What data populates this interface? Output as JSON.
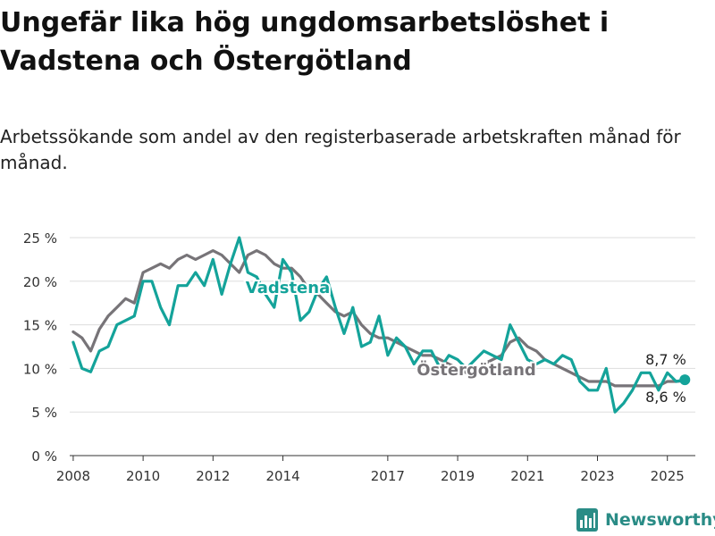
{
  "header": {
    "title": "Ungefär lika hög ungdomsarbetslöshet i Vadstena och Östergötland",
    "subtitle": "Arbetssökande som andel av den registerbaserade arbetskraften månad för månad."
  },
  "brand": {
    "name": "Newsworthy",
    "icon": "bar-chart-icon",
    "color": "#2a8c86"
  },
  "colors": {
    "vadstena": "#14a39a",
    "ostergotland": "#777478",
    "grid": "#dddddd",
    "axis": "#333333"
  },
  "chart_data": {
    "type": "line",
    "title": "Ungefär lika hög ungdomsarbetslöshet i Vadstena och Östergötland",
    "xlabel": "",
    "ylabel": "",
    "ylim": [
      0,
      25
    ],
    "xlim": [
      2007.9,
      2025.8
    ],
    "x_ticks": [
      2008,
      2010,
      2012,
      2014,
      2017,
      2019,
      2021,
      2023,
      2025
    ],
    "y_ticks": [
      0,
      5,
      10,
      15,
      20,
      25
    ],
    "y_tick_labels": [
      "0 %",
      "5 %",
      "10 %",
      "15 %",
      "20 %",
      "25 %"
    ],
    "grid": true,
    "legend": "direct labels on lines",
    "end_labels": [
      "8,7 %",
      "8,6 %"
    ],
    "series": [
      {
        "name": "Vadstena",
        "color": "#14a39a",
        "x": [
          2008.0,
          2008.25,
          2008.5,
          2008.75,
          2009.0,
          2009.25,
          2009.5,
          2009.75,
          2010.0,
          2010.25,
          2010.5,
          2010.75,
          2011.0,
          2011.25,
          2011.5,
          2011.75,
          2012.0,
          2012.25,
          2012.5,
          2012.75,
          2013.0,
          2013.25,
          2013.5,
          2013.75,
          2014.0,
          2014.25,
          2014.5,
          2014.75,
          2015.0,
          2015.25,
          2015.5,
          2015.75,
          2016.0,
          2016.25,
          2016.5,
          2016.75,
          2017.0,
          2017.25,
          2017.5,
          2017.75,
          2018.0,
          2018.25,
          2018.5,
          2018.75,
          2019.0,
          2019.25,
          2019.5,
          2019.75,
          2020.0,
          2020.25,
          2020.5,
          2020.75,
          2021.0,
          2021.25,
          2021.5,
          2021.75,
          2022.0,
          2022.25,
          2022.5,
          2022.75,
          2023.0,
          2023.25,
          2023.5,
          2023.75,
          2024.0,
          2024.25,
          2024.5,
          2024.75,
          2025.0,
          2025.25,
          2025.5
        ],
        "values": [
          13,
          10,
          9.6,
          12,
          12.5,
          15,
          15.5,
          16,
          20,
          20,
          17,
          15,
          19.5,
          19.5,
          21,
          19.5,
          22.5,
          18.5,
          22,
          25,
          21,
          20.5,
          18.5,
          17,
          22.5,
          21,
          15.5,
          16.5,
          19,
          20.5,
          17,
          14,
          17,
          12.5,
          13,
          16,
          11.5,
          13.5,
          12.5,
          10.5,
          12,
          12,
          10,
          11.5,
          11,
          10,
          11,
          12,
          11.5,
          11,
          15,
          13,
          11,
          10.5,
          11,
          10.5,
          11.5,
          11,
          8.5,
          7.5,
          7.5,
          10,
          5,
          6,
          7.5,
          9.5,
          9.5,
          7.5,
          9.5,
          8.5,
          8.7
        ]
      },
      {
        "name": "Östergötland",
        "color": "#777478",
        "x": [
          2008.0,
          2008.25,
          2008.5,
          2008.75,
          2009.0,
          2009.25,
          2009.5,
          2009.75,
          2010.0,
          2010.25,
          2010.5,
          2010.75,
          2011.0,
          2011.25,
          2011.5,
          2011.75,
          2012.0,
          2012.25,
          2012.5,
          2012.75,
          2013.0,
          2013.25,
          2013.5,
          2013.75,
          2014.0,
          2014.25,
          2014.5,
          2014.75,
          2015.0,
          2015.25,
          2015.5,
          2015.75,
          2016.0,
          2016.25,
          2016.5,
          2016.75,
          2017.0,
          2017.25,
          2017.5,
          2017.75,
          2018.0,
          2018.25,
          2018.5,
          2018.75,
          2019.0,
          2019.25,
          2019.5,
          2019.75,
          2020.0,
          2020.25,
          2020.5,
          2020.75,
          2021.0,
          2021.25,
          2021.5,
          2021.75,
          2022.0,
          2022.25,
          2022.5,
          2022.75,
          2023.0,
          2023.25,
          2023.5,
          2023.75,
          2024.0,
          2024.25,
          2024.5,
          2024.75,
          2025.0,
          2025.25,
          2025.5
        ],
        "values": [
          14.2,
          13.5,
          12,
          14.5,
          16,
          17,
          18,
          17.5,
          21,
          21.5,
          22,
          21.5,
          22.5,
          23,
          22.5,
          23,
          23.5,
          23,
          22,
          21,
          23,
          23.5,
          23,
          22,
          21.5,
          21.5,
          20.5,
          19,
          18.5,
          17.5,
          16.5,
          16,
          16.5,
          15,
          14,
          13.5,
          13.5,
          13,
          12.5,
          12,
          11.5,
          11.5,
          11,
          10.5,
          10,
          9.5,
          9.5,
          10.5,
          11,
          11.5,
          13,
          13.5,
          12.5,
          12,
          11,
          10.5,
          10,
          9.5,
          9,
          8.5,
          8.5,
          8.5,
          8,
          8,
          8,
          8,
          8,
          8,
          8.5,
          8.5,
          8.6
        ]
      }
    ]
  }
}
